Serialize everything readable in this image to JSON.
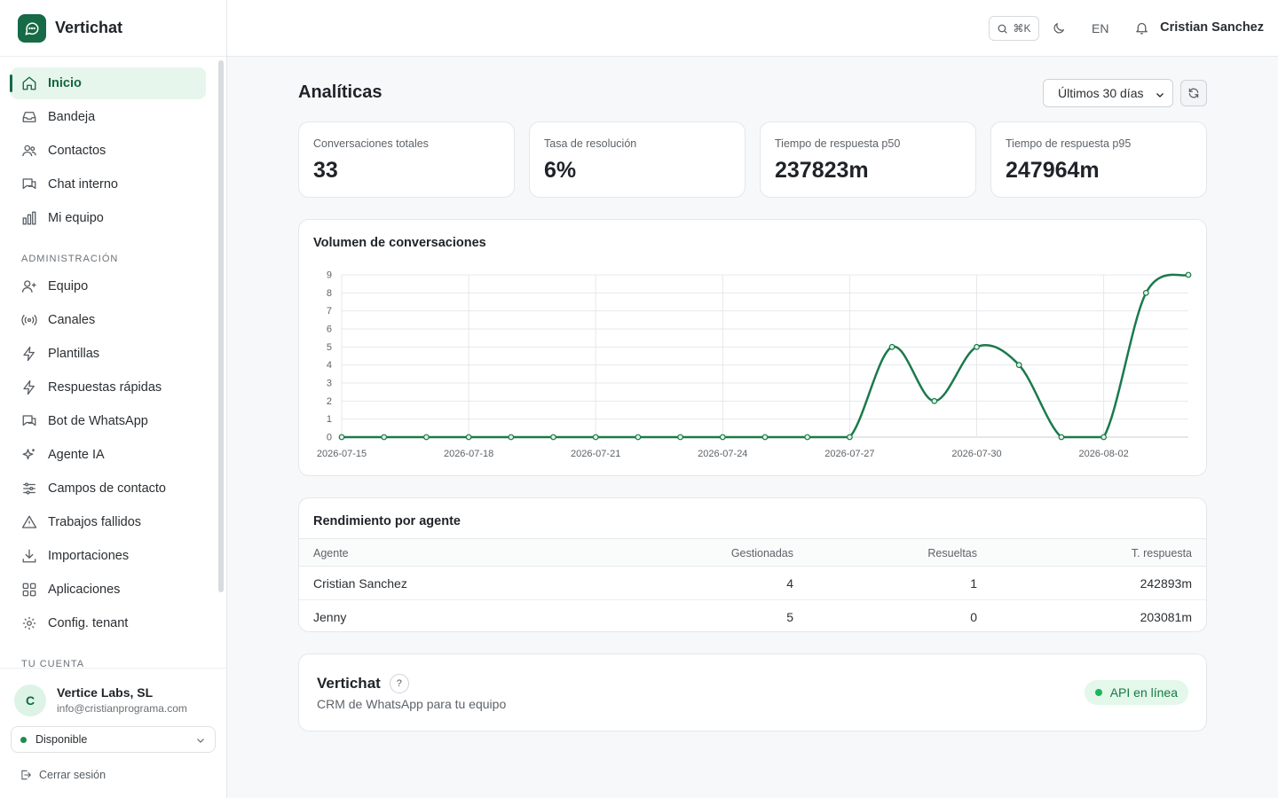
{
  "app": {
    "name": "Vertichat"
  },
  "sidebar": {
    "items": [
      {
        "label": "Inicio",
        "icon": "home-icon",
        "active": true
      },
      {
        "label": "Bandeja",
        "icon": "inbox-icon"
      },
      {
        "label": "Contactos",
        "icon": "users-icon"
      },
      {
        "label": "Chat interno",
        "icon": "chat-icon"
      },
      {
        "label": "Mi equipo",
        "icon": "bar-chart-icon"
      }
    ],
    "admin_section": "ADMINISTRACIÓN",
    "admin_items": [
      {
        "label": "Equipo",
        "icon": "user-plus-icon"
      },
      {
        "label": "Canales",
        "icon": "radio-icon"
      },
      {
        "label": "Plantillas",
        "icon": "bolt-icon"
      },
      {
        "label": "Respuestas rápidas",
        "icon": "bolt-icon"
      },
      {
        "label": "Bot de WhatsApp",
        "icon": "bot-chat-icon"
      },
      {
        "label": "Agente IA",
        "icon": "sparkles-icon"
      },
      {
        "label": "Campos de contacto",
        "icon": "sliders-icon"
      },
      {
        "label": "Trabajos fallidos",
        "icon": "warning-icon"
      },
      {
        "label": "Importaciones",
        "icon": "download-icon"
      },
      {
        "label": "Aplicaciones",
        "icon": "grid-icon"
      },
      {
        "label": "Config. tenant",
        "icon": "gear-icon"
      }
    ],
    "account_section": "TU CUENTA",
    "account": {
      "initial": "C",
      "name": "Vertice Labs, SL",
      "email": "info@cristianprograma.com",
      "status": "Disponible",
      "logout": "Cerrar sesión"
    }
  },
  "header": {
    "search_shortcut": "⌘K",
    "language": "EN",
    "user": "Cristian Sanchez"
  },
  "main": {
    "title": "Analíticas",
    "range": "Últimos 30 días",
    "kpis": [
      {
        "label": "Conversaciones totales",
        "value": "33"
      },
      {
        "label": "Tasa de resolución",
        "value": "6%"
      },
      {
        "label": "Tiempo de respuesta p50",
        "value": "237823m"
      },
      {
        "label": "Tiempo de respuesta p95",
        "value": "247964m"
      }
    ],
    "chart_title": "Volumen de conversaciones",
    "table": {
      "title": "Rendimiento por agente",
      "headers": [
        "Agente",
        "Gestionadas",
        "Resueltas",
        "T. respuesta"
      ],
      "rows": [
        [
          "Cristian Sanchez",
          "4",
          "1",
          "242893m"
        ],
        [
          "Jenny",
          "5",
          "0",
          "203081m"
        ]
      ]
    },
    "footer": {
      "title": "Vertichat",
      "help": "?",
      "subtitle": "CRM de WhatsApp para tu equipo",
      "api_status": "API en línea"
    }
  },
  "colors": {
    "accent": "#166a45",
    "line": "#1a7a4c",
    "active_bg": "#e7f6ec"
  },
  "chart_data": {
    "type": "line",
    "x": [
      "2026-07-15",
      "2026-07-16",
      "2026-07-17",
      "2026-07-18",
      "2026-07-19",
      "2026-07-20",
      "2026-07-21",
      "2026-07-22",
      "2026-07-23",
      "2026-07-24",
      "2026-07-25",
      "2026-07-26",
      "2026-07-27",
      "2026-07-28",
      "2026-07-29",
      "2026-07-30",
      "2026-07-31",
      "2026-08-01",
      "2026-08-02",
      "2026-08-03",
      "2026-08-04"
    ],
    "y": [
      0,
      0,
      0,
      0,
      0,
      0,
      0,
      0,
      0,
      0,
      0,
      0,
      0,
      5,
      2,
      5,
      4,
      0,
      0,
      8,
      9
    ],
    "tick_labels": [
      "2026-07-15",
      "2026-07-18",
      "2026-07-21",
      "2026-07-24",
      "2026-07-27",
      "2026-07-30",
      "2026-08-02"
    ],
    "y_ticks": [
      0,
      1,
      2,
      3,
      4,
      5,
      6,
      7,
      8,
      9
    ],
    "ylim": [
      0,
      9
    ],
    "grid": true,
    "smooth": true
  }
}
